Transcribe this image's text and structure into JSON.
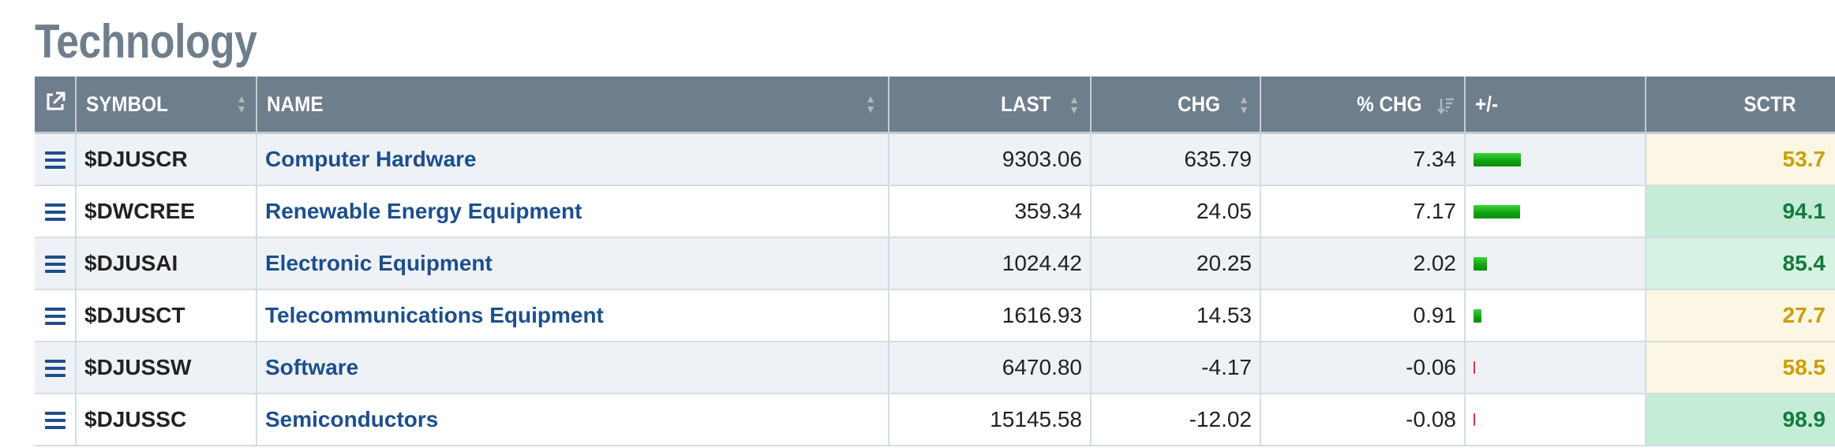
{
  "page": {
    "title": "Technology"
  },
  "table": {
    "headers": {
      "symbol": "SYMBOL",
      "name": "NAME",
      "last": "LAST",
      "chg": "CHG",
      "pct_chg": "% CHG",
      "plus_minus": "+/-",
      "sctr": "SCTR"
    },
    "rows": [
      {
        "symbol": "$DJUSCR",
        "name": "Computer Hardware",
        "last": "9303.06",
        "chg": "635.79",
        "pct_chg": "7.34",
        "pct_value": 7.34,
        "sctr": "53.7",
        "sctr_value": 53.7
      },
      {
        "symbol": "$DWCREE",
        "name": "Renewable Energy Equipment",
        "last": "359.34",
        "chg": "24.05",
        "pct_chg": "7.17",
        "pct_value": 7.17,
        "sctr": "94.1",
        "sctr_value": 94.1
      },
      {
        "symbol": "$DJUSAI",
        "name": "Electronic Equipment",
        "last": "1024.42",
        "chg": "20.25",
        "pct_chg": "2.02",
        "pct_value": 2.02,
        "sctr": "85.4",
        "sctr_value": 85.4
      },
      {
        "symbol": "$DJUSCT",
        "name": "Telecommunications Equipment",
        "last": "1616.93",
        "chg": "14.53",
        "pct_chg": "0.91",
        "pct_value": 0.91,
        "sctr": "27.7",
        "sctr_value": 27.7
      },
      {
        "symbol": "$DJUSSW",
        "name": "Software",
        "last": "6470.80",
        "chg": "-4.17",
        "pct_chg": "-0.06",
        "pct_value": -0.06,
        "sctr": "58.5",
        "sctr_value": 58.5
      },
      {
        "symbol": "$DJUSSC",
        "name": "Semiconductors",
        "last": "15145.58",
        "chg": "-12.02",
        "pct_chg": "-0.08",
        "pct_value": -0.08,
        "sctr": "98.9",
        "sctr_value": 98.9
      }
    ]
  },
  "icons": {
    "open": "external-link-icon",
    "menu": "hamburger-menu-icon",
    "sort": "sort-arrows-icon",
    "sort_active": "sort-descending-icon"
  },
  "colors": {
    "header_bg": "#6f7e8c",
    "link": "#1d4f8c",
    "bar_up": "#14b014",
    "bar_down": "#e0323c",
    "sctr_mid": "#c9a000",
    "sctr_high": "#137a3c"
  }
}
